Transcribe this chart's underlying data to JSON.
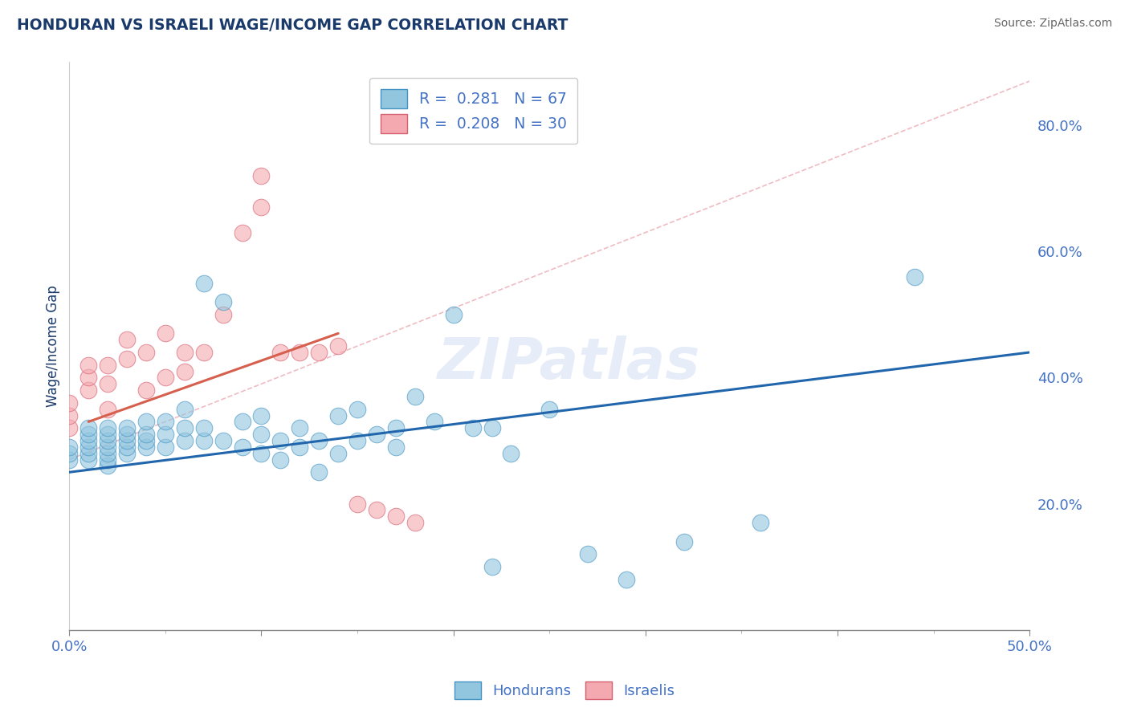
{
  "title": "HONDURAN VS ISRAELI WAGE/INCOME GAP CORRELATION CHART",
  "source": "Source: ZipAtlas.com",
  "ylabel": "Wage/Income Gap",
  "xmin": 0.0,
  "xmax": 0.5,
  "ymin": 0.0,
  "ymax": 0.9,
  "xticks": [
    0.0,
    0.1,
    0.2,
    0.3,
    0.4,
    0.5
  ],
  "xticklabels": [
    "0.0%",
    "",
    "",
    "",
    "",
    "50.0%"
  ],
  "yticks_right": [
    0.2,
    0.4,
    0.6,
    0.8
  ],
  "yticklabels_right": [
    "20.0%",
    "40.0%",
    "60.0%",
    "80.0%"
  ],
  "honduran_color": "#92c5de",
  "honduran_edge": "#4393c3",
  "israeli_color": "#f4a9b0",
  "israeli_edge": "#d6606d",
  "honduran_R": 0.281,
  "honduran_N": 67,
  "israeli_R": 0.208,
  "israeli_N": 30,
  "honduran_line_color": "#2166ac",
  "israeli_line_color": "#d6604d",
  "ref_line_color": "#f4a9b0",
  "honduran_scatter_x": [
    0.0,
    0.0,
    0.0,
    0.01,
    0.01,
    0.01,
    0.01,
    0.01,
    0.01,
    0.02,
    0.02,
    0.02,
    0.02,
    0.02,
    0.02,
    0.02,
    0.03,
    0.03,
    0.03,
    0.03,
    0.03,
    0.04,
    0.04,
    0.04,
    0.04,
    0.05,
    0.05,
    0.05,
    0.06,
    0.06,
    0.06,
    0.07,
    0.07,
    0.07,
    0.08,
    0.08,
    0.09,
    0.09,
    0.1,
    0.1,
    0.1,
    0.11,
    0.11,
    0.12,
    0.12,
    0.13,
    0.13,
    0.14,
    0.14,
    0.15,
    0.15,
    0.16,
    0.17,
    0.17,
    0.18,
    0.19,
    0.2,
    0.21,
    0.22,
    0.22,
    0.23,
    0.25,
    0.27,
    0.29,
    0.32,
    0.36,
    0.44
  ],
  "honduran_scatter_y": [
    0.27,
    0.28,
    0.29,
    0.27,
    0.28,
    0.29,
    0.3,
    0.31,
    0.32,
    0.26,
    0.27,
    0.28,
    0.29,
    0.3,
    0.31,
    0.32,
    0.28,
    0.29,
    0.3,
    0.31,
    0.32,
    0.29,
    0.3,
    0.31,
    0.33,
    0.29,
    0.31,
    0.33,
    0.3,
    0.32,
    0.35,
    0.3,
    0.32,
    0.55,
    0.3,
    0.52,
    0.29,
    0.33,
    0.28,
    0.31,
    0.34,
    0.27,
    0.3,
    0.32,
    0.29,
    0.25,
    0.3,
    0.28,
    0.34,
    0.3,
    0.35,
    0.31,
    0.32,
    0.29,
    0.37,
    0.33,
    0.5,
    0.32,
    0.32,
    0.1,
    0.28,
    0.35,
    0.12,
    0.08,
    0.14,
    0.17,
    0.56
  ],
  "israeli_scatter_x": [
    0.0,
    0.0,
    0.0,
    0.01,
    0.01,
    0.01,
    0.02,
    0.02,
    0.02,
    0.03,
    0.03,
    0.04,
    0.04,
    0.05,
    0.05,
    0.06,
    0.06,
    0.07,
    0.08,
    0.09,
    0.1,
    0.1,
    0.11,
    0.12,
    0.13,
    0.14,
    0.15,
    0.16,
    0.17,
    0.18
  ],
  "israeli_scatter_y": [
    0.32,
    0.34,
    0.36,
    0.38,
    0.4,
    0.42,
    0.35,
    0.39,
    0.42,
    0.43,
    0.46,
    0.38,
    0.44,
    0.4,
    0.47,
    0.41,
    0.44,
    0.44,
    0.5,
    0.63,
    0.67,
    0.72,
    0.44,
    0.44,
    0.44,
    0.45,
    0.2,
    0.19,
    0.18,
    0.17
  ],
  "background_color": "#ffffff",
  "grid_color": "#c8c8c8",
  "watermark_text": "ZIPatlas",
  "title_color": "#1a3a6b",
  "axis_label_color": "#1a3a6b",
  "tick_color": "#4472c4",
  "source_text": "Source: ZipAtlas.com"
}
